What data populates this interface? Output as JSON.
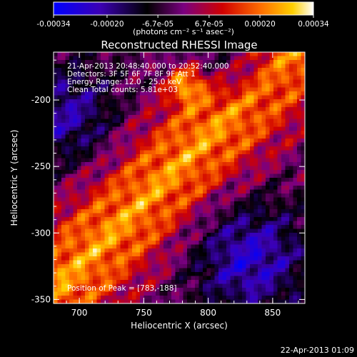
{
  "chart_data": {
    "type": "heatmap",
    "title": "Reconstructed RHESSI Image",
    "xlabel": "Heliocentric X (arcsec)",
    "ylabel": "Heliocentric Y (arcsec)",
    "xlim": [
      680,
      875
    ],
    "ylim": [
      -353,
      -164
    ],
    "x_ticks": [
      "700",
      "750",
      "800",
      "850"
    ],
    "y_ticks": [
      "-200",
      "-250",
      "-300",
      "-350"
    ],
    "x_tick_values": [
      700,
      750,
      800,
      850
    ],
    "y_tick_values": [
      -200,
      -250,
      -300,
      -350
    ],
    "colorbar": {
      "range": [
        -0.00034,
        0.00034
      ],
      "tick_labels": [
        "-0.00034",
        "-0.00020",
        "-6.7e-05",
        "6.7e-05",
        "0.00020",
        "0.00034"
      ],
      "tick_values": [
        -0.00034,
        -0.0002,
        -6.7e-05,
        6.7e-05,
        0.0002,
        0.00034
      ],
      "units": "(photons cm⁻² s⁻¹ asec⁻²)",
      "colormap": [
        "#0000ff",
        "#3c00b4",
        "#000000",
        "#7a0080",
        "#d00000",
        "#ff7000",
        "#ffd000",
        "#ffffff"
      ]
    },
    "annotations": {
      "time_range": "21-Apr-2013 20:48:40.000 to 20:52:40.000",
      "detectors": "Detectors: 3F 5F 6F 7F 8F 9F Att 1",
      "energy": "Energy Range: 12.0 - 25.0 keV",
      "clean": "Clean     Total counts: 5.81e+03",
      "peak": "Position of Peak = [783,-188]"
    },
    "peak_position": [
      783,
      -188
    ]
  },
  "footer_date": "22-Apr-2013 01:09"
}
